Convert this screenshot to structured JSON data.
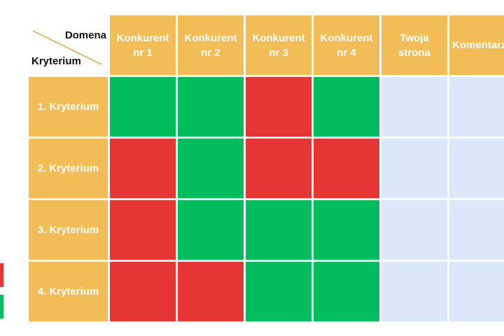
{
  "corner": {
    "top_label": "Domena",
    "bottom_label": "Kryterium"
  },
  "columns": [
    "Konkurent\nnr 1",
    "Konkurent\nnr 2",
    "Konkurent\nnr 3",
    "Konkurent\nnr 4",
    "Twoja\nstrona",
    "Komentarz"
  ],
  "rows": [
    {
      "label": "1. Kryterium",
      "cells": [
        "green",
        "green",
        "red",
        "green",
        "empty",
        "empty"
      ]
    },
    {
      "label": "2. Kryterium",
      "cells": [
        "red",
        "green",
        "red",
        "red",
        "empty",
        "empty"
      ]
    },
    {
      "label": "3. Kryterium",
      "cells": [
        "red",
        "green",
        "green",
        "green",
        "empty",
        "empty"
      ]
    },
    {
      "label": "4. Kryterium",
      "cells": [
        "red",
        "red",
        "green",
        "green",
        "empty",
        "empty"
      ]
    }
  ],
  "colors": {
    "header": "#f2bc56",
    "green": "#02bd5e",
    "red": "#e63535",
    "empty": "#dbe8fb"
  }
}
